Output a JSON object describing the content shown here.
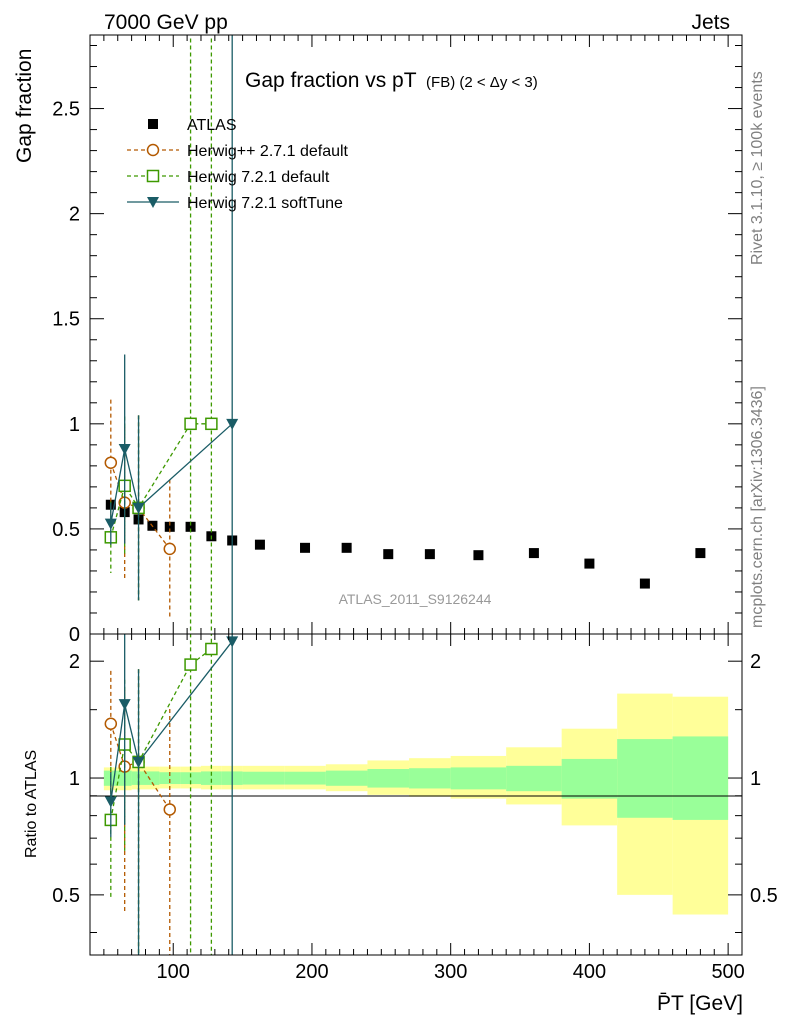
{
  "header": {
    "left": "7000 GeV pp",
    "right": "Jets"
  },
  "title": {
    "main": "Gap fraction vs pT",
    "small": "(FB) (2 < Δy < 3)"
  },
  "side_labels": {
    "rivet": "Rivet 3.1.10, ≥ 100k events",
    "mcplots": "mcplots.cern.ch [arXiv:1306.3436]"
  },
  "analysis_label": "ATLAS_2011_S9126244",
  "axes": {
    "ylabel_top": "Gap fraction",
    "ylabel_bottom": "Ratio to ATLAS",
    "xlabel": "P̄T [GeV]"
  },
  "legend": [
    {
      "label": "ATLAS",
      "color": "#000000",
      "marker": "filled-square"
    },
    {
      "label": "Herwig++ 2.7.1 default",
      "color": "#b35900",
      "marker": "open-circle"
    },
    {
      "label": "Herwig 7.2.1 default",
      "color": "#3d9900",
      "marker": "open-square"
    },
    {
      "label": "Herwig 7.2.1 softTune",
      "color": "#1a5c66",
      "marker": "filled-triangle-down"
    }
  ],
  "chart_data": {
    "type": "scatter",
    "x_range": [
      40,
      510
    ],
    "top_panel": {
      "ylim": [
        0,
        2.85
      ],
      "yticks": [
        0,
        0.5,
        1,
        1.5,
        2,
        2.5
      ],
      "ytick_labels": [
        "0",
        "0.5",
        "1",
        "1.5",
        "2",
        "2.5"
      ]
    },
    "bottom_panel": {
      "ylim": [
        0.35,
        2.35
      ],
      "yticks": [
        0.5,
        1,
        2
      ],
      "ytick_labels": [
        "0.5",
        "1",
        "2"
      ],
      "scale": "log"
    },
    "xticks": [
      100,
      200,
      300,
      400,
      500
    ],
    "xtick_labels": [
      "100",
      "200",
      "300",
      "400",
      "500"
    ],
    "atlas": {
      "x": [
        55,
        65,
        75,
        85,
        97.5,
        112.5,
        127.5,
        142.5,
        162.5,
        195,
        225,
        255,
        285,
        320,
        360,
        400,
        440,
        480
      ],
      "y": [
        0.615,
        0.58,
        0.545,
        0.515,
        0.51,
        0.51,
        0.465,
        0.445,
        0.425,
        0.41,
        0.41,
        0.38,
        0.38,
        0.375,
        0.385,
        0.335,
        0.24,
        0.385
      ]
    },
    "bands": {
      "edges": [
        50,
        60,
        70,
        80,
        90,
        105,
        120,
        135,
        150,
        180,
        210,
        240,
        270,
        300,
        340,
        380,
        420,
        460,
        500
      ],
      "inner_lo": [
        0.955,
        0.955,
        0.96,
        0.96,
        0.965,
        0.965,
        0.96,
        0.96,
        0.962,
        0.962,
        0.955,
        0.945,
        0.94,
        0.935,
        0.925,
        0.885,
        0.79,
        0.78
      ],
      "inner_hi": [
        1.045,
        1.045,
        1.04,
        1.04,
        1.035,
        1.035,
        1.04,
        1.04,
        1.038,
        1.038,
        1.045,
        1.055,
        1.06,
        1.065,
        1.075,
        1.12,
        1.26,
        1.28
      ],
      "outer_lo": [
        0.93,
        0.93,
        0.935,
        0.935,
        0.94,
        0.94,
        0.935,
        0.935,
        0.935,
        0.935,
        0.925,
        0.905,
        0.895,
        0.885,
        0.855,
        0.755,
        0.5,
        0.445
      ],
      "outer_hi": [
        1.065,
        1.065,
        1.07,
        1.07,
        1.07,
        1.07,
        1.075,
        1.075,
        1.075,
        1.075,
        1.085,
        1.11,
        1.125,
        1.14,
        1.2,
        1.34,
        1.65,
        1.62
      ]
    },
    "series": [
      {
        "name": "Herwig++ 2.7.1 default",
        "x": [
          55,
          65,
          75,
          97.5
        ],
        "y": [
          0.815,
          0.625,
          0.6,
          0.405
        ],
        "err": [
          0.3,
          0.36,
          0.44,
          0.33
        ],
        "ratio": [
          1.38,
          1.07,
          1.1,
          0.83
        ]
      },
      {
        "name": "Herwig 7.2.1 default",
        "x": [
          55,
          65,
          75,
          112.5,
          127.5
        ],
        "y": [
          0.46,
          0.705,
          0.6,
          1.0,
          1.0
        ],
        "err": [
          0.17,
          0.33,
          0.44,
          2.0,
          2.0
        ],
        "ratio": [
          0.78,
          1.22,
          1.1,
          1.96,
          2.15
        ]
      },
      {
        "name": "Herwig 7.2.1 softTune",
        "x": [
          55,
          65,
          75,
          142.5
        ],
        "y": [
          0.525,
          0.88,
          0.6,
          1.0
        ],
        "err": [
          0.1,
          0.45,
          0.44,
          2.0
        ],
        "ratio": [
          0.87,
          1.55,
          1.1,
          2.25
        ]
      }
    ]
  }
}
